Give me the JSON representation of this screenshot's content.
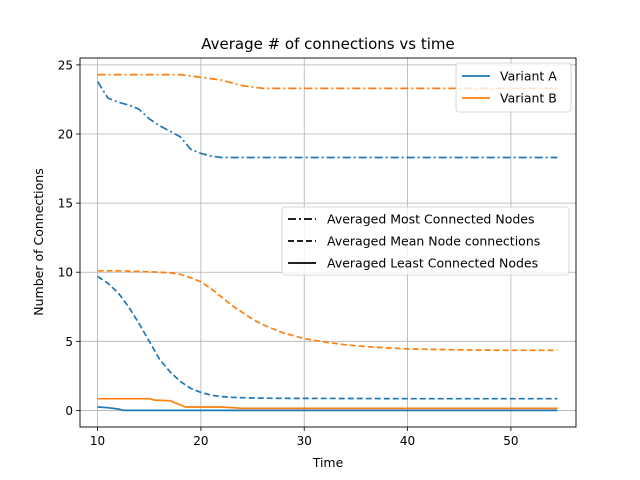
{
  "chart_data": {
    "type": "line",
    "title": "Average # of connections vs time",
    "xlabel": "Time",
    "ylabel": "Number of Connections",
    "xlim": [
      8.3,
      56.3
    ],
    "ylim": [
      -1.2,
      25.5
    ],
    "xticks": [
      10,
      20,
      30,
      40,
      50
    ],
    "yticks": [
      0,
      5,
      10,
      15,
      20,
      25
    ],
    "grid": true,
    "colors": {
      "variant_a": "#1f77b4",
      "variant_b": "#ff7f0e"
    },
    "legend_series": {
      "placement": "top-right",
      "items": [
        {
          "label": "Variant A",
          "color": "#1f77b4"
        },
        {
          "label": "Variant B",
          "color": "#ff7f0e"
        }
      ]
    },
    "legend_styles": {
      "placement": "center-right",
      "items": [
        {
          "label": "Averaged Most Connected Nodes",
          "style": "dashdot"
        },
        {
          "label": "Averaged Mean Node connections",
          "style": "dashed"
        },
        {
          "label": "Averaged Least Connected Nodes",
          "style": "solid"
        }
      ]
    },
    "series": [
      {
        "variant": "Variant A",
        "metric": "Averaged Most Connected Nodes",
        "color": "#1f77b4",
        "style": "dashdot",
        "x": [
          10,
          11,
          12,
          13,
          14,
          15,
          16,
          17,
          18,
          19,
          20,
          21,
          22,
          25,
          30,
          35,
          40,
          45,
          50,
          54.5
        ],
        "y": [
          23.8,
          22.6,
          22.3,
          22.1,
          21.8,
          21.1,
          20.6,
          20.2,
          19.8,
          18.9,
          18.6,
          18.4,
          18.3,
          18.3,
          18.3,
          18.3,
          18.3,
          18.3,
          18.3,
          18.3
        ]
      },
      {
        "variant": "Variant B",
        "metric": "Averaged Most Connected Nodes",
        "color": "#ff7f0e",
        "style": "dashdot",
        "x": [
          10,
          12,
          14,
          16,
          18,
          19,
          20,
          21,
          22,
          23,
          24,
          25,
          26,
          28,
          30,
          35,
          40,
          45,
          50,
          54.5
        ],
        "y": [
          24.3,
          24.3,
          24.3,
          24.3,
          24.3,
          24.2,
          24.1,
          24.0,
          23.9,
          23.7,
          23.5,
          23.4,
          23.3,
          23.3,
          23.3,
          23.3,
          23.3,
          23.3,
          23.3,
          23.3
        ]
      },
      {
        "variant": "Variant A",
        "metric": "Averaged Mean Node connections",
        "color": "#1f77b4",
        "style": "dashed",
        "x": [
          10,
          11,
          12,
          13,
          14,
          15,
          16,
          17,
          18,
          19,
          20,
          21,
          22,
          23,
          24,
          25,
          27,
          30,
          35,
          40,
          45,
          50,
          54.5
        ],
        "y": [
          9.7,
          9.2,
          8.5,
          7.5,
          6.3,
          5.0,
          3.7,
          2.8,
          2.1,
          1.6,
          1.3,
          1.1,
          1.0,
          0.95,
          0.92,
          0.9,
          0.88,
          0.87,
          0.86,
          0.85,
          0.85,
          0.85,
          0.85
        ]
      },
      {
        "variant": "Variant B",
        "metric": "Averaged Mean Node connections",
        "color": "#ff7f0e",
        "style": "dashed",
        "x": [
          10,
          12,
          14,
          16,
          17,
          18,
          19,
          20,
          21,
          22,
          23,
          24,
          25,
          26,
          27,
          28,
          30,
          32,
          34,
          36,
          38,
          40,
          45,
          50,
          54.5
        ],
        "y": [
          10.1,
          10.1,
          10.05,
          10.0,
          9.95,
          9.85,
          9.6,
          9.3,
          8.8,
          8.2,
          7.6,
          7.1,
          6.6,
          6.2,
          5.9,
          5.6,
          5.2,
          4.95,
          4.75,
          4.62,
          4.52,
          4.45,
          4.38,
          4.35,
          4.35
        ]
      },
      {
        "variant": "Variant A",
        "metric": "Averaged Least Connected Nodes",
        "color": "#1f77b4",
        "style": "solid",
        "x": [
          10,
          11,
          12,
          12.5,
          20,
          30,
          40,
          50,
          54.5
        ],
        "y": [
          0.25,
          0.2,
          0.1,
          0.0,
          0.0,
          0.0,
          0.0,
          0.0,
          0.0
        ]
      },
      {
        "variant": "Variant B",
        "metric": "Averaged Least Connected Nodes",
        "color": "#ff7f0e",
        "style": "solid",
        "x": [
          10,
          15,
          15.5,
          17,
          18.5,
          19,
          20,
          22,
          24,
          30,
          40,
          50,
          54.5
        ],
        "y": [
          0.85,
          0.85,
          0.75,
          0.7,
          0.25,
          0.25,
          0.25,
          0.25,
          0.15,
          0.15,
          0.15,
          0.15,
          0.15
        ]
      }
    ]
  }
}
